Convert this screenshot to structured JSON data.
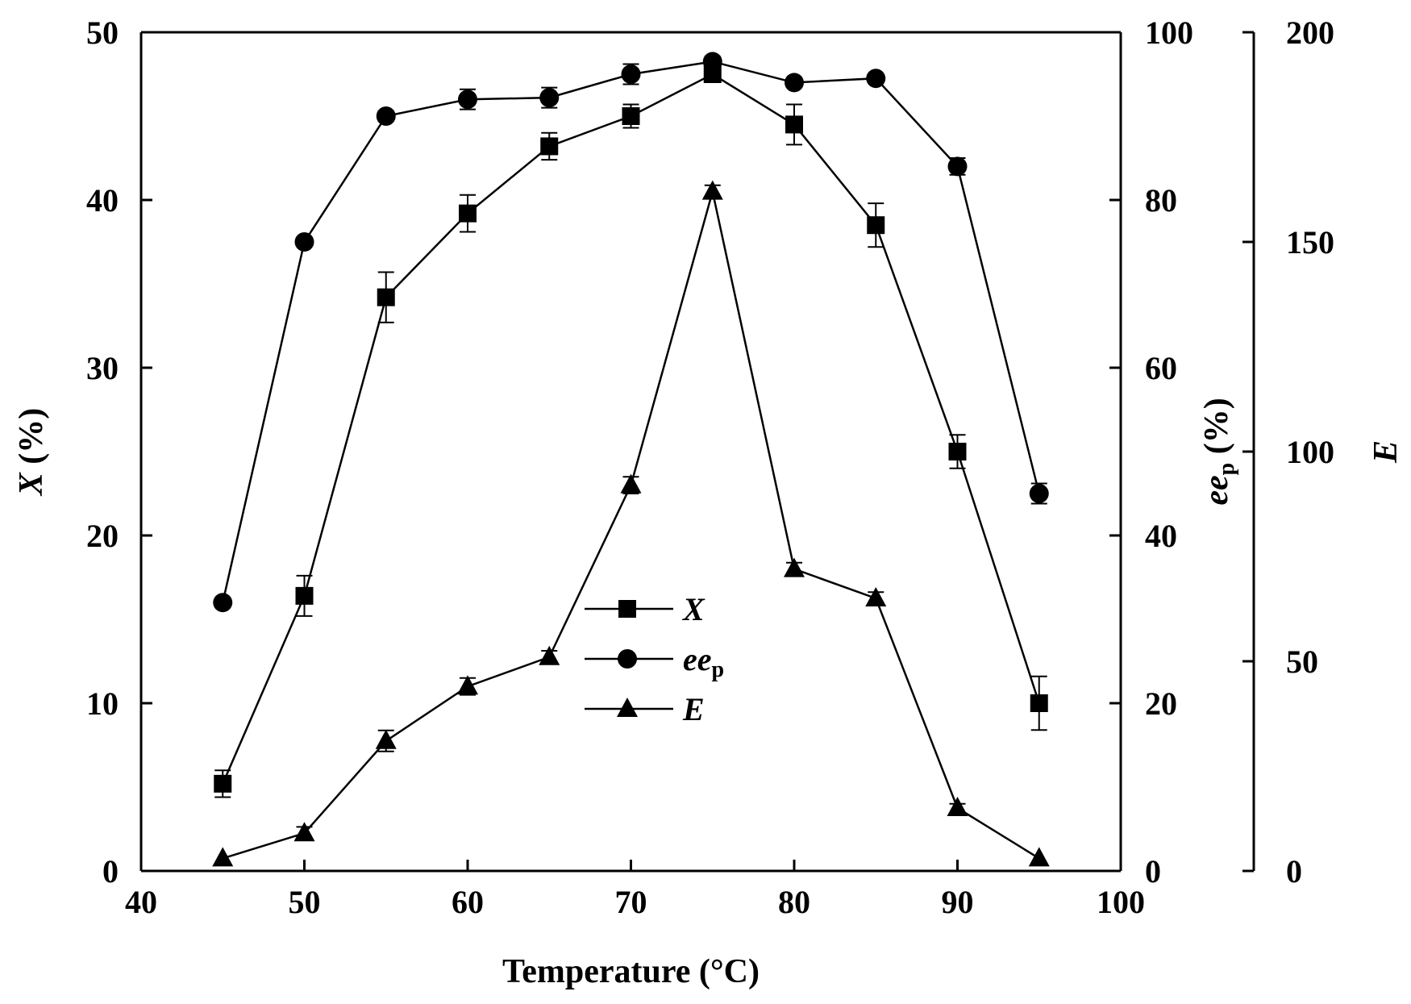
{
  "chart_data": {
    "type": "line",
    "x": [
      45,
      50,
      55,
      60,
      65,
      70,
      75,
      80,
      85,
      90,
      95
    ],
    "series": [
      {
        "name": "X",
        "marker": "square",
        "axis": "left",
        "values": [
          5.2,
          16.4,
          34.2,
          39.2,
          43.2,
          45.0,
          47.5,
          44.5,
          38.5,
          25.0,
          10.0
        ],
        "errors": [
          0.8,
          1.2,
          1.5,
          1.1,
          0.8,
          0.7,
          0.4,
          1.2,
          1.3,
          1.0,
          1.6
        ]
      },
      {
        "name": "ee",
        "name_subscript": "p",
        "marker": "circle",
        "axis": "middle",
        "values": [
          32.0,
          75.0,
          90.0,
          92.0,
          92.2,
          95.0,
          96.5,
          94.0,
          94.5,
          84.0,
          45.0
        ],
        "errors": [
          0.5,
          0.5,
          0.6,
          1.2,
          1.2,
          1.2,
          0.6,
          0.5,
          0.5,
          1.0,
          1.2
        ]
      },
      {
        "name": "E",
        "marker": "triangle",
        "axis": "right",
        "values": [
          3,
          9,
          31,
          44,
          51,
          92,
          162,
          72,
          65,
          15,
          3
        ],
        "errors": [
          0,
          1.5,
          2.5,
          2.0,
          1.5,
          2.0,
          1.5,
          1.5,
          1.5,
          1.0,
          0
        ]
      }
    ],
    "xlabel": "Temperature (°C)",
    "xlim": [
      40,
      100
    ],
    "x_ticks": [
      "40",
      "50",
      "60",
      "70",
      "80",
      "90",
      "100"
    ],
    "y_left": {
      "label_main": "X",
      "label_rest": " (%)",
      "lim": [
        0,
        50
      ],
      "ticks": [
        "0",
        "10",
        "20",
        "30",
        "40",
        "50"
      ]
    },
    "y_middle": {
      "label_main": "ee",
      "label_sub": "p",
      "label_rest": " (%)",
      "lim": [
        0,
        100
      ],
      "ticks": [
        "0",
        "20",
        "40",
        "60",
        "80",
        "100"
      ]
    },
    "y_right": {
      "label_main": "E",
      "lim": [
        0,
        200
      ],
      "ticks": [
        "0",
        "50",
        "100",
        "150",
        "200"
      ]
    },
    "grid": false,
    "legend_position": "center"
  }
}
